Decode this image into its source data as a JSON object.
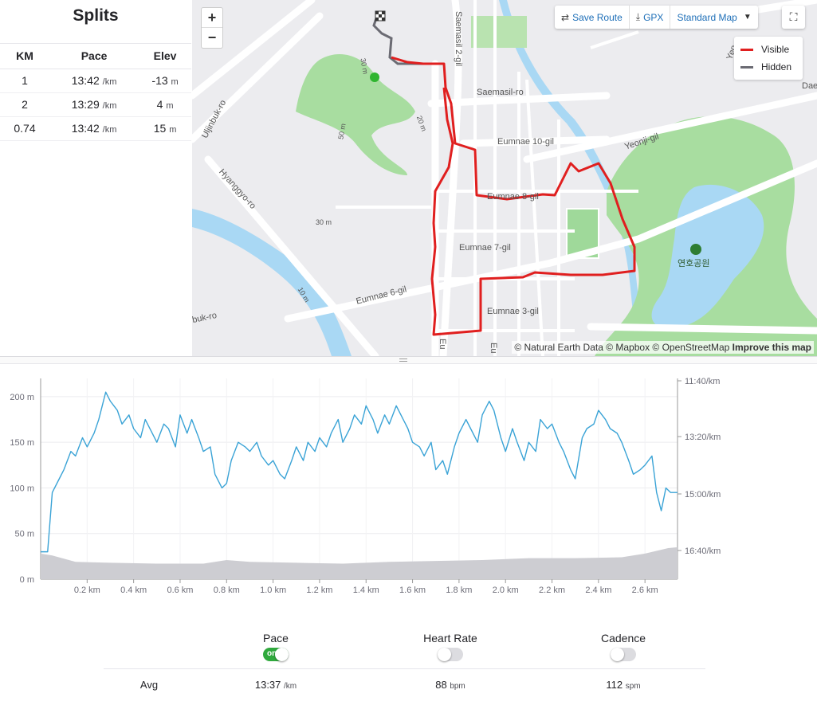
{
  "splits": {
    "title": "Splits",
    "headers": {
      "km": "KM",
      "pace": "Pace",
      "elev": "Elev"
    },
    "rows": [
      {
        "km": "1",
        "pace": "13:42",
        "pace_unit": "/km",
        "elev": "-13",
        "elev_unit": "m"
      },
      {
        "km": "2",
        "pace": "13:29",
        "pace_unit": "/km",
        "elev": "4",
        "elev_unit": "m"
      },
      {
        "km": "0.74",
        "pace": "13:42",
        "pace_unit": "/km",
        "elev": "15",
        "elev_unit": "m"
      }
    ]
  },
  "map": {
    "zoom_in": "+",
    "zoom_out": "−",
    "tools": {
      "save_route": "Save Route",
      "gpx": "GPX",
      "map_style": "Standard Map"
    },
    "legend": {
      "visible": "Visible",
      "hidden": "Hidden",
      "visible_color": "#e01f1f",
      "hidden_color": "#6b6b73"
    },
    "attribution": {
      "text": "© Natural Earth Data © Mapbox © OpenStreetMap",
      "improve": "Improve this map"
    },
    "labels": {
      "saemasil2": "Saemasil 2-gil",
      "saemasilro": "Saemasil-ro",
      "eumnae10": "Eumnae 10-gil",
      "yeonji": "Yeonji-gil",
      "eumnae8": "Eumnae 8-gil",
      "eumnae7": "Eumnae 7-gil",
      "eumnae6": "Eumnae 6-gil",
      "eumnae3": "Eumnae 3-gil",
      "uljinbuk": "Uljinbuk-ro",
      "hyanggyo": "Hyanggyo-ro",
      "bukro": "buk-ro",
      "park": "연호공원",
      "c30a": "30 m",
      "c50": "50 m",
      "c20": "20 m",
      "c30b": "30 m",
      "c10": "10 m",
      "eu1": "Eu",
      "eu2": "Eu",
      "yeong": "Yeo",
      "dae": "Dae"
    }
  },
  "chart_data": {
    "type": "line",
    "x_unit": "km",
    "x_ticks": [
      "0.2 km",
      "0.4 km",
      "0.6 km",
      "0.8 km",
      "1.0 km",
      "1.2 km",
      "1.4 km",
      "1.6 km",
      "1.8 km",
      "2.0 km",
      "2.2 km",
      "2.4 km",
      "2.6 km"
    ],
    "xlim": [
      0,
      2.74
    ],
    "y_left_ticks": [
      "0 m",
      "50 m",
      "100 m",
      "150 m",
      "200 m"
    ],
    "y_left_lim": [
      0,
      220
    ],
    "y_right_ticks": [
      "11:40/km",
      "13:20/km",
      "15:00/km",
      "16:40/km"
    ],
    "series": [
      {
        "role": "pace",
        "color": "#3aa3d6",
        "x": [
          0.0,
          0.03,
          0.05,
          0.08,
          0.1,
          0.13,
          0.15,
          0.18,
          0.2,
          0.23,
          0.25,
          0.28,
          0.3,
          0.33,
          0.35,
          0.38,
          0.4,
          0.43,
          0.45,
          0.48,
          0.5,
          0.53,
          0.55,
          0.58,
          0.6,
          0.63,
          0.65,
          0.68,
          0.7,
          0.73,
          0.75,
          0.78,
          0.8,
          0.82,
          0.85,
          0.88,
          0.9,
          0.93,
          0.95,
          0.98,
          1.0,
          1.03,
          1.05,
          1.08,
          1.1,
          1.13,
          1.15,
          1.18,
          1.2,
          1.23,
          1.25,
          1.28,
          1.3,
          1.33,
          1.35,
          1.38,
          1.4,
          1.43,
          1.45,
          1.48,
          1.5,
          1.53,
          1.55,
          1.58,
          1.6,
          1.63,
          1.65,
          1.68,
          1.7,
          1.73,
          1.75,
          1.78,
          1.8,
          1.83,
          1.85,
          1.88,
          1.9,
          1.93,
          1.95,
          1.98,
          2.0,
          2.03,
          2.05,
          2.08,
          2.1,
          2.13,
          2.15,
          2.18,
          2.2,
          2.23,
          2.25,
          2.28,
          2.3,
          2.33,
          2.35,
          2.38,
          2.4,
          2.43,
          2.45,
          2.48,
          2.5,
          2.53,
          2.55,
          2.58,
          2.6,
          2.63,
          2.65,
          2.67,
          2.69,
          2.71,
          2.74
        ],
        "values_m": [
          30,
          30,
          95,
          110,
          120,
          140,
          135,
          155,
          145,
          160,
          175,
          205,
          195,
          185,
          170,
          180,
          165,
          155,
          175,
          160,
          150,
          170,
          165,
          145,
          180,
          160,
          175,
          155,
          140,
          145,
          115,
          100,
          105,
          130,
          150,
          145,
          140,
          150,
          135,
          125,
          130,
          115,
          110,
          130,
          145,
          130,
          150,
          140,
          155,
          145,
          160,
          175,
          150,
          165,
          180,
          170,
          190,
          175,
          160,
          180,
          170,
          190,
          180,
          165,
          150,
          145,
          135,
          150,
          120,
          130,
          115,
          145,
          160,
          175,
          165,
          150,
          180,
          195,
          185,
          155,
          140,
          165,
          150,
          130,
          150,
          140,
          175,
          165,
          170,
          150,
          140,
          120,
          110,
          155,
          165,
          170,
          185,
          175,
          165,
          160,
          150,
          130,
          115,
          120,
          125,
          135,
          95,
          75,
          100,
          95,
          95
        ]
      },
      {
        "role": "elevation",
        "color": "#cdcdd2",
        "x": [
          0.0,
          0.05,
          0.15,
          0.3,
          0.5,
          0.7,
          0.8,
          0.9,
          1.1,
          1.3,
          1.5,
          1.7,
          1.9,
          2.1,
          2.3,
          2.5,
          2.6,
          2.7,
          2.74
        ],
        "values_m": [
          28,
          26,
          19,
          18,
          17,
          17,
          21,
          19,
          18,
          17,
          19,
          20,
          21,
          23,
          23,
          24,
          28,
          34,
          35
        ]
      }
    ]
  },
  "stats": {
    "pace": {
      "label": "Pace",
      "toggle": "on",
      "avg": "13:37",
      "unit": "/km"
    },
    "heart_rate": {
      "label": "Heart Rate",
      "avg": "88",
      "unit": "bpm"
    },
    "cadence": {
      "label": "Cadence",
      "avg": "112",
      "unit": "spm"
    },
    "avg_label": "Avg"
  }
}
